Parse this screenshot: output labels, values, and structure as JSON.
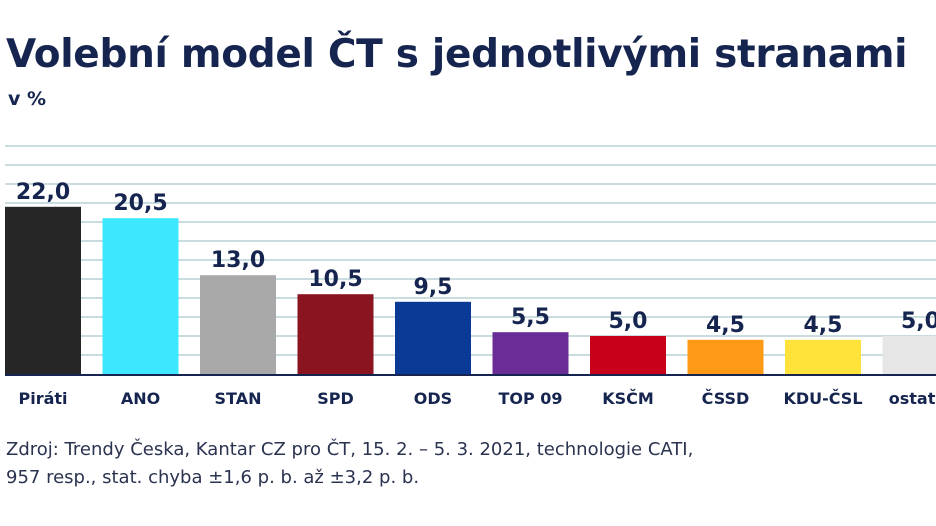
{
  "chart_data": {
    "type": "bar",
    "title": "Volební model ČT s jednotlivými stranami",
    "subtitle": "v %",
    "categories": [
      "Piráti",
      "ANO",
      "STAN",
      "SPD",
      "ODS",
      "TOP 09",
      "KSČM",
      "ČSSD",
      "KDU-ČSL",
      "ostatní"
    ],
    "values": [
      22.0,
      20.5,
      13.0,
      10.5,
      9.5,
      5.5,
      5.0,
      4.5,
      4.5,
      5.0
    ],
    "value_labels": [
      "22,0",
      "20,5",
      "13,0",
      "10,5",
      "9,5",
      "5,5",
      "5,0",
      "4,5",
      "4,5",
      "5,0"
    ],
    "colors": [
      "#262626",
      "#3de8ff",
      "#a9a9a9",
      "#8a1420",
      "#0b3a96",
      "#6a2c95",
      "#c8001a",
      "#ff9a16",
      "#ffe23a",
      "#e6e6e6"
    ],
    "ylim": [
      0,
      30
    ],
    "grid": true,
    "grid_color": "#a9c7cc",
    "axis_line_color": "#15254f"
  },
  "source": {
    "line1": "Zdroj: Trendy Česka, Kantar CZ pro ČT, 15. 2. – 5. 3. 2021, technologie CATI,",
    "line2": "957 resp., stat. chyba ±1,6 p. b. až ±3,2 p. b."
  }
}
